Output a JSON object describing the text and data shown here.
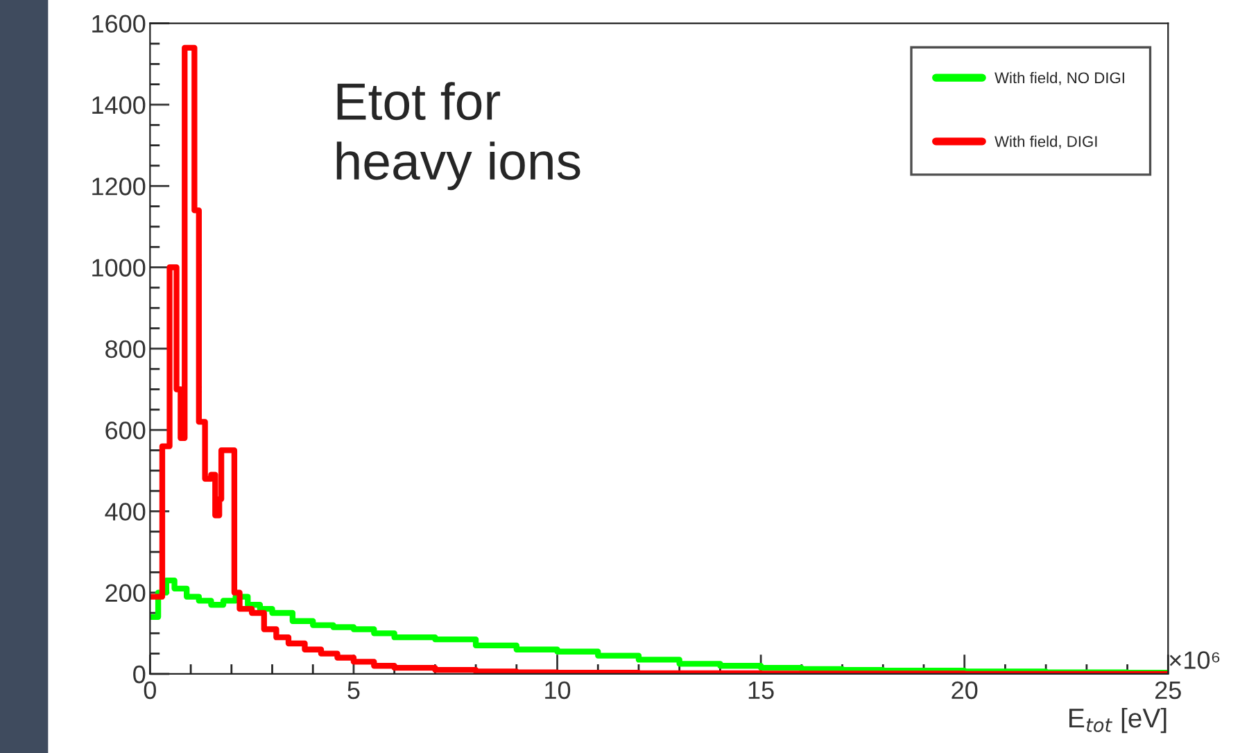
{
  "chart_data": {
    "type": "step",
    "xlabel": "E$_{tot}$ [eV]",
    "annotations": [
      "Etot for\nheavy ions",
      "×10⁶"
    ],
    "xlim": [
      0,
      25
    ],
    "xticks": [
      0,
      5,
      10,
      15,
      20,
      25
    ],
    "ylim": [
      0,
      1600
    ],
    "yticks": [
      0,
      200,
      400,
      600,
      800,
      1000,
      1200,
      1400,
      1600
    ],
    "grid": false,
    "legend": "top right",
    "line_style": "solid",
    "series": [
      {
        "name": "With field, NO DIGI",
        "color": "#00ff00",
        "x": [
          0,
          0.2,
          0.4,
          0.6,
          0.9,
          1.2,
          1.5,
          1.8,
          2.1,
          2.4,
          2.7,
          3.0,
          3.5,
          4.0,
          4.5,
          5.0,
          5.5,
          6.0,
          7.0,
          8.0,
          9.0,
          10,
          11,
          12,
          13,
          14,
          15,
          16,
          17,
          18,
          20,
          22,
          24,
          25
        ],
        "values": [
          140,
          200,
          230,
          210,
          190,
          180,
          170,
          180,
          190,
          170,
          160,
          150,
          130,
          120,
          115,
          110,
          100,
          90,
          85,
          70,
          60,
          55,
          45,
          35,
          25,
          20,
          15,
          12,
          10,
          8,
          6,
          4,
          3,
          3
        ]
      },
      {
        "name": "With field, DIGI",
        "color": "#ff0000",
        "x": [
          0,
          0.3,
          0.48,
          0.65,
          0.75,
          0.85,
          1.09,
          1.2,
          1.35,
          1.5,
          1.6,
          1.7,
          1.75,
          2.07,
          2.2,
          2.5,
          2.8,
          3.1,
          3.4,
          3.8,
          4.2,
          4.6,
          5.0,
          5.5,
          6.0,
          7.0,
          8.0,
          9.0,
          10,
          12,
          15,
          20,
          25
        ],
        "values": [
          190,
          560,
          1000,
          700,
          580,
          1540,
          1140,
          620,
          480,
          490,
          390,
          430,
          550,
          200,
          160,
          150,
          110,
          90,
          75,
          60,
          50,
          40,
          30,
          20,
          15,
          10,
          6,
          4,
          3,
          2,
          1,
          0,
          0
        ]
      }
    ]
  }
}
